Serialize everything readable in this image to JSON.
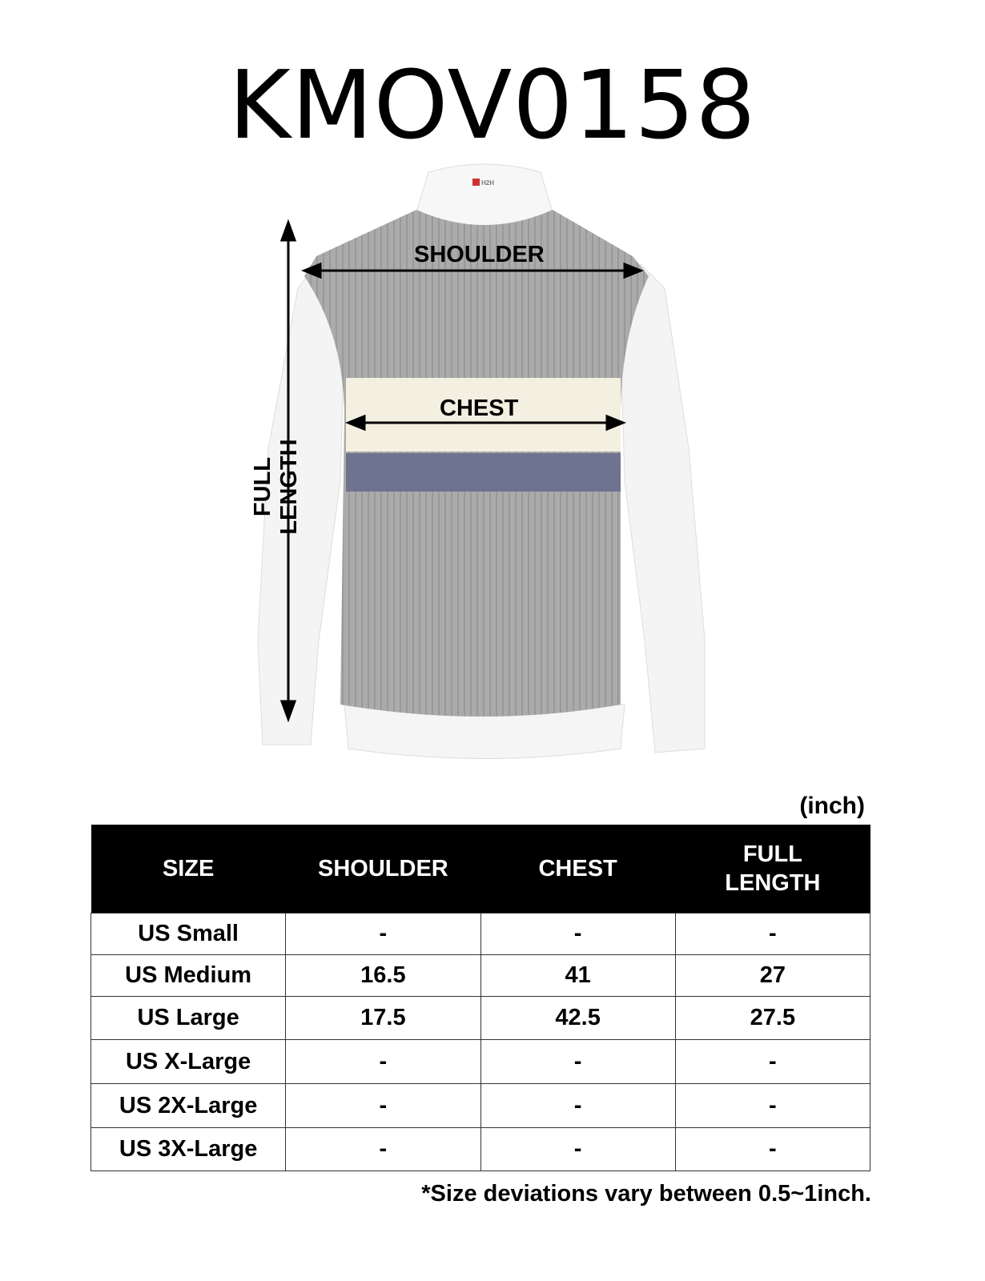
{
  "title": "KMOV0158",
  "labels": {
    "shoulder": "SHOULDER",
    "chest": "CHEST",
    "full_length": "FULL LENGTH",
    "brand_tag": "H2H"
  },
  "colors": {
    "vest": "#a9a9a9",
    "stripe_cream": "#f4f1e4",
    "stripe_navy": "#6e7490",
    "shirt": "#f6f6f6",
    "header_bg": "#000000"
  },
  "table": {
    "unit": "(inch)",
    "headers": [
      "SIZE",
      "SHOULDER",
      "CHEST",
      "FULL LENGTH"
    ],
    "rows": [
      [
        "US Small",
        "-",
        "-",
        "-"
      ],
      [
        "US Medium",
        "16.5",
        "41",
        "27"
      ],
      [
        "US Large",
        "17.5",
        "42.5",
        "27.5"
      ],
      [
        "US X-Large",
        "-",
        "-",
        "-"
      ],
      [
        "US 2X-Large",
        "-",
        "-",
        "-"
      ],
      [
        "US 3X-Large",
        "-",
        "-",
        "-"
      ]
    ]
  },
  "note": "*Size deviations vary between 0.5~1inch."
}
